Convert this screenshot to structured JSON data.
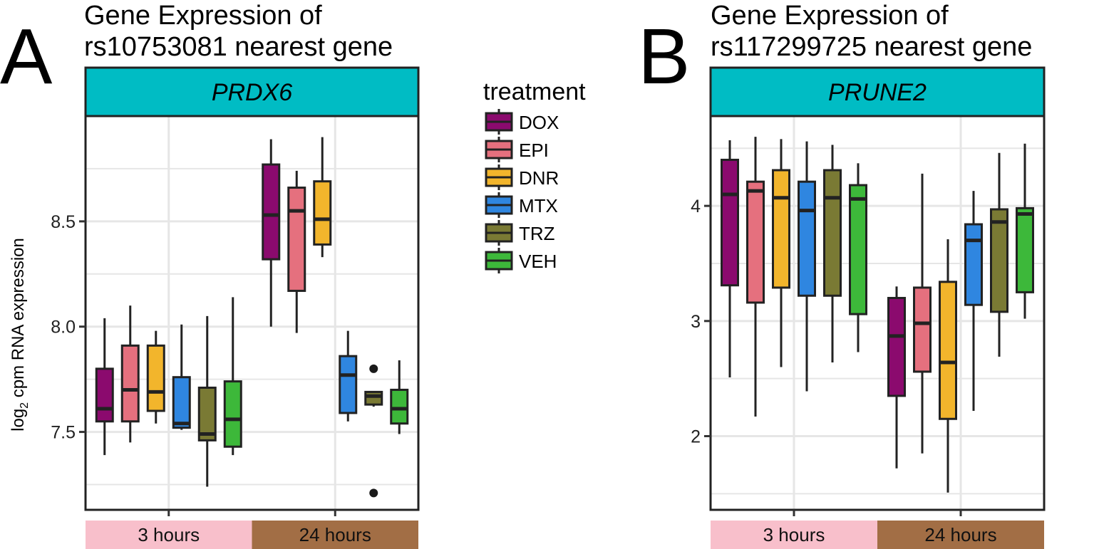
{
  "treatments": [
    {
      "name": "DOX",
      "color": "#8B0A6E"
    },
    {
      "name": "EPI",
      "color": "#E5707E"
    },
    {
      "name": "DNR",
      "color": "#F2B52C"
    },
    {
      "name": "MTX",
      "color": "#2F86E0"
    },
    {
      "name": "TRZ",
      "color": "#7A7A34"
    },
    {
      "name": "VEH",
      "color": "#3DB83A"
    }
  ],
  "legend": {
    "title": "treatment"
  },
  "strip_color": "#00BCC4",
  "time_colors": {
    "3 hours": "#F8BFCB",
    "24 hours": "#A26E45"
  },
  "chart_data": [
    {
      "type": "boxplot",
      "panel_letter": "A",
      "title_line1": "Gene Expression of",
      "title_line2": "rs10753081 nearest gene",
      "strip_label": "PRDX6",
      "ylabel_base": "log",
      "ylabel_sub": "2",
      "ylabel_rest": " cpm RNA expression",
      "categories": [
        "3 hours",
        "24 hours"
      ],
      "ylim": [
        7.13,
        9.0
      ],
      "yticks": [
        7.5,
        8.0,
        8.5
      ],
      "ytick_labels": [
        "7.5",
        "8.0",
        "8.5"
      ],
      "grid": true,
      "boxes": [
        {
          "time": "3 hours",
          "treatment": "DOX",
          "min": 7.39,
          "q1": 7.55,
          "median": 7.61,
          "q3": 7.8,
          "max": 8.04
        },
        {
          "time": "3 hours",
          "treatment": "EPI",
          "min": 7.45,
          "q1": 7.55,
          "median": 7.7,
          "q3": 7.91,
          "max": 8.1
        },
        {
          "time": "3 hours",
          "treatment": "DNR",
          "min": 7.54,
          "q1": 7.6,
          "median": 7.69,
          "q3": 7.91,
          "max": 7.98
        },
        {
          "time": "3 hours",
          "treatment": "MTX",
          "min": 7.51,
          "q1": 7.52,
          "median": 7.54,
          "q3": 7.76,
          "max": 8.01
        },
        {
          "time": "3 hours",
          "treatment": "TRZ",
          "min": 7.24,
          "q1": 7.46,
          "median": 7.49,
          "q3": 7.71,
          "max": 8.05
        },
        {
          "time": "3 hours",
          "treatment": "VEH",
          "min": 7.39,
          "q1": 7.43,
          "median": 7.56,
          "q3": 7.74,
          "max": 8.14
        },
        {
          "time": "24 hours",
          "treatment": "DOX",
          "min": 8.0,
          "q1": 8.32,
          "median": 8.53,
          "q3": 8.77,
          "max": 8.89
        },
        {
          "time": "24 hours",
          "treatment": "EPI",
          "min": 7.97,
          "q1": 8.17,
          "median": 8.55,
          "q3": 8.66,
          "max": 8.74
        },
        {
          "time": "24 hours",
          "treatment": "DNR",
          "min": 8.33,
          "q1": 8.39,
          "median": 8.51,
          "q3": 8.69,
          "max": 8.9
        },
        {
          "time": "24 hours",
          "treatment": "MTX",
          "min": 7.55,
          "q1": 7.59,
          "median": 7.77,
          "q3": 7.86,
          "max": 7.98
        },
        {
          "time": "24 hours",
          "treatment": "TRZ",
          "min": 7.62,
          "q1": 7.63,
          "median": 7.67,
          "q3": 7.69,
          "max": 7.69
        },
        {
          "time": "24 hours",
          "treatment": "VEH",
          "min": 7.49,
          "q1": 7.54,
          "median": 7.61,
          "q3": 7.7,
          "max": 7.84
        }
      ],
      "outliers": [
        {
          "time": "24 hours",
          "treatment": "TRZ",
          "value": 7.8
        },
        {
          "time": "24 hours",
          "treatment": "TRZ",
          "value": 7.21
        }
      ]
    },
    {
      "type": "boxplot",
      "panel_letter": "B",
      "title_line1": "Gene Expression of",
      "title_line2": "rs117299725 nearest gene",
      "strip_label": "PRUNE2",
      "categories": [
        "3 hours",
        "24 hours"
      ],
      "ylim": [
        1.36,
        4.78
      ],
      "yticks": [
        2,
        3,
        4
      ],
      "ytick_labels": [
        "2",
        "3",
        "4"
      ],
      "grid": true,
      "boxes": [
        {
          "time": "3 hours",
          "treatment": "DOX",
          "min": 2.51,
          "q1": 3.31,
          "median": 4.1,
          "q3": 4.4,
          "max": 4.57
        },
        {
          "time": "3 hours",
          "treatment": "EPI",
          "min": 2.17,
          "q1": 3.16,
          "median": 4.13,
          "q3": 4.21,
          "max": 4.6
        },
        {
          "time": "3 hours",
          "treatment": "DNR",
          "min": 2.6,
          "q1": 3.29,
          "median": 4.07,
          "q3": 4.31,
          "max": 4.58
        },
        {
          "time": "3 hours",
          "treatment": "MTX",
          "min": 2.39,
          "q1": 3.22,
          "median": 3.96,
          "q3": 4.21,
          "max": 4.56
        },
        {
          "time": "3 hours",
          "treatment": "TRZ",
          "min": 2.64,
          "q1": 3.22,
          "median": 4.07,
          "q3": 4.31,
          "max": 4.53
        },
        {
          "time": "3 hours",
          "treatment": "VEH",
          "min": 2.73,
          "q1": 3.06,
          "median": 4.06,
          "q3": 4.18,
          "max": 4.37
        },
        {
          "time": "24 hours",
          "treatment": "DOX",
          "min": 1.72,
          "q1": 2.35,
          "median": 2.87,
          "q3": 3.2,
          "max": 3.3
        },
        {
          "time": "24 hours",
          "treatment": "EPI",
          "min": 1.85,
          "q1": 2.56,
          "median": 2.98,
          "q3": 3.29,
          "max": 4.28
        },
        {
          "time": "24 hours",
          "treatment": "DNR",
          "min": 1.51,
          "q1": 2.15,
          "median": 2.64,
          "q3": 3.34,
          "max": 3.71
        },
        {
          "time": "24 hours",
          "treatment": "MTX",
          "min": 2.22,
          "q1": 3.14,
          "median": 3.7,
          "q3": 3.84,
          "max": 4.13
        },
        {
          "time": "24 hours",
          "treatment": "TRZ",
          "min": 2.69,
          "q1": 3.08,
          "median": 3.86,
          "q3": 3.97,
          "max": 4.46
        },
        {
          "time": "24 hours",
          "treatment": "VEH",
          "min": 3.02,
          "q1": 3.25,
          "median": 3.93,
          "q3": 3.98,
          "max": 4.54
        }
      ],
      "outliers": []
    }
  ]
}
